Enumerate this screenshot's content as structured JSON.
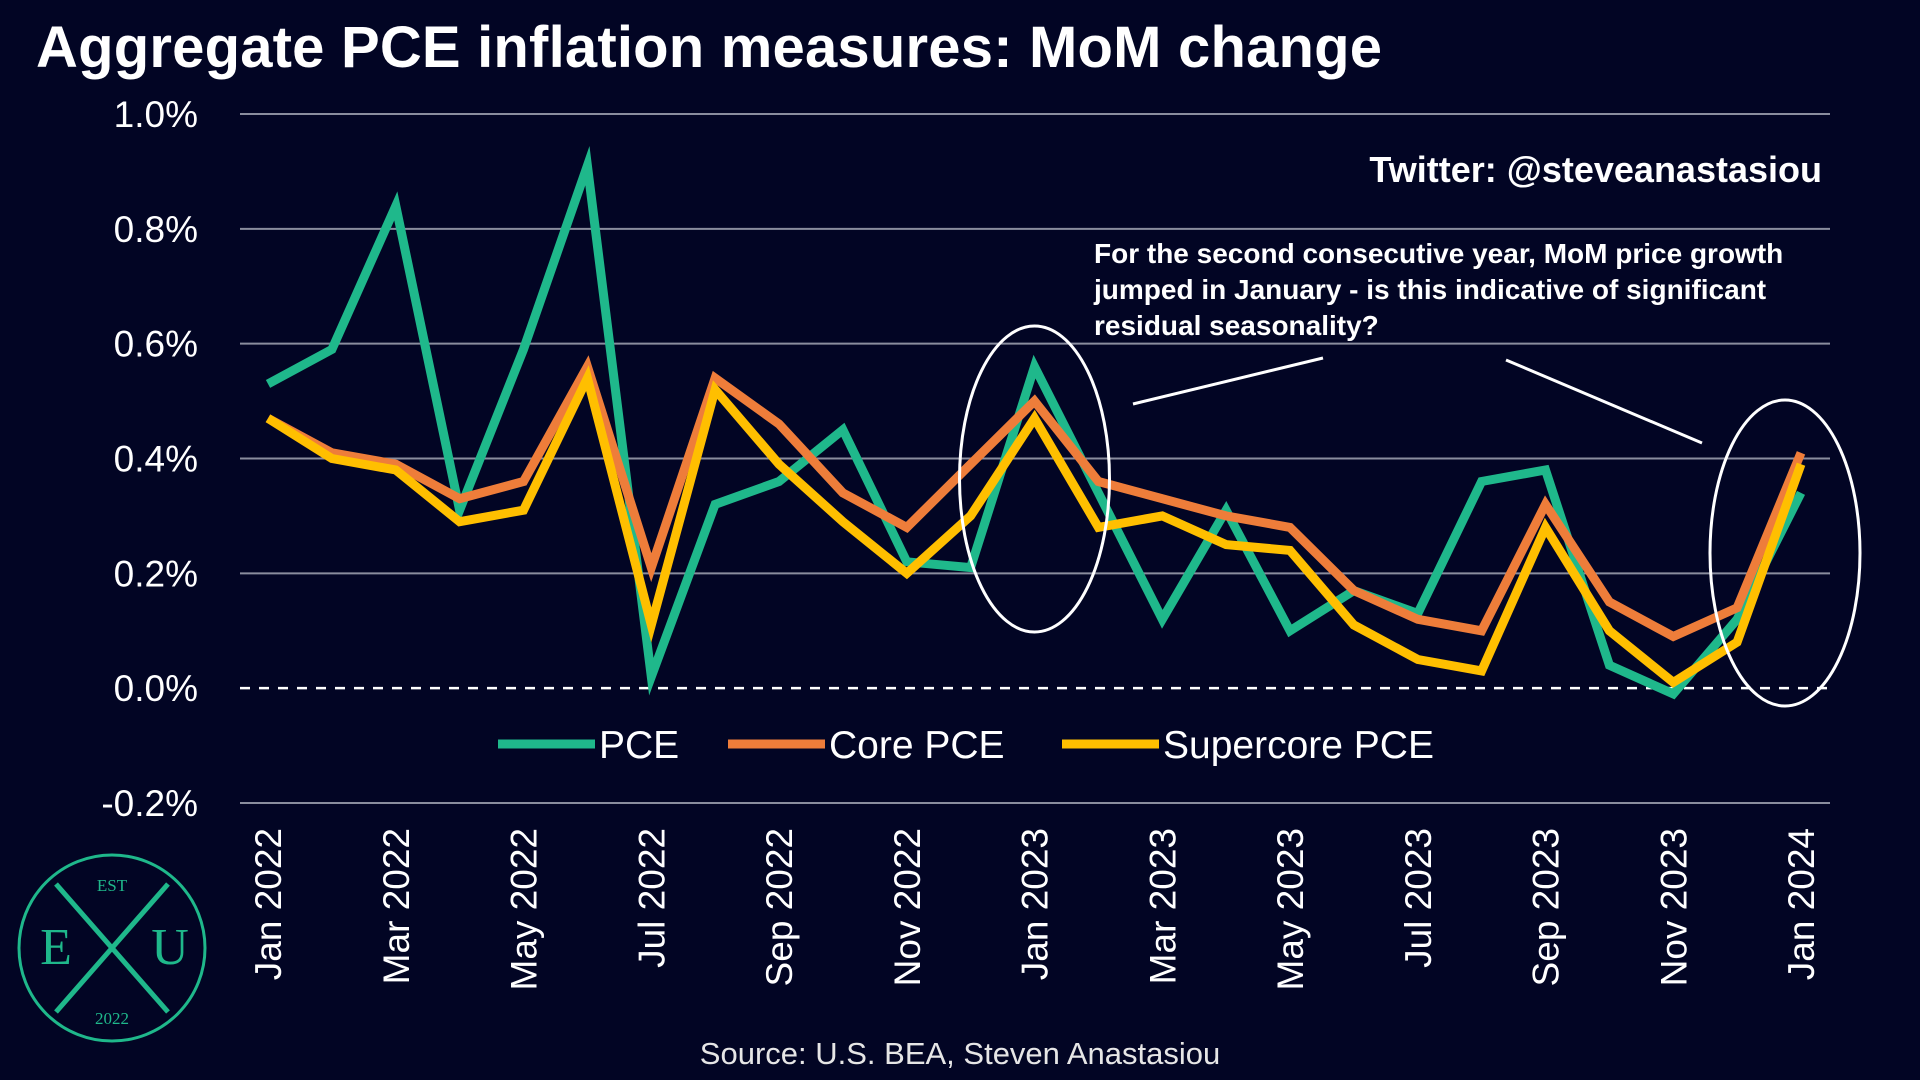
{
  "title": "Aggregate PCE inflation measures: MoM change",
  "source": "Source: U.S. BEA, Steven Anastasiou",
  "twitter": "Twitter: @steveanastasiou",
  "annotation": [
    "For the second consecutive year, MoM price growth",
    "jumped in January - is this indicative of significant",
    "residual seasonality?"
  ],
  "logo": {
    "top": "EST",
    "left": "E",
    "right": "U",
    "bottom": "2022"
  },
  "chart_data": {
    "type": "line",
    "x": [
      "Jan 2022",
      "Feb 2022",
      "Mar 2022",
      "Apr 2022",
      "May 2022",
      "Jun 2022",
      "Jul 2022",
      "Aug 2022",
      "Sep 2022",
      "Oct 2022",
      "Nov 2022",
      "Dec 2022",
      "Jan 2023",
      "Feb 2023",
      "Mar 2023",
      "Apr 2023",
      "May 2023",
      "Jun 2023",
      "Jul 2023",
      "Aug 2023",
      "Sep 2023",
      "Oct 2023",
      "Nov 2023",
      "Dec 2023",
      "Jan 2024"
    ],
    "x_tick_labels": [
      "Jan 2022",
      "Mar 2022",
      "May 2022",
      "Jul 2022",
      "Sep 2022",
      "Nov 2022",
      "Jan 2023",
      "Mar 2023",
      "May 2023",
      "Jul 2023",
      "Sep 2023",
      "Nov 2023",
      "Jan 2024"
    ],
    "y_ticks": [
      "-0.2%",
      "0.0%",
      "0.2%",
      "0.4%",
      "0.6%",
      "0.8%",
      "1.0%"
    ],
    "ylim": [
      -0.2,
      1.0
    ],
    "legend_position": "bottom-center",
    "series": [
      {
        "name": "PCE",
        "color": "#1fb88b",
        "values": [
          0.53,
          0.59,
          0.84,
          0.31,
          0.59,
          0.91,
          0.02,
          0.32,
          0.36,
          0.45,
          0.22,
          0.21,
          0.56,
          0.34,
          0.12,
          0.31,
          0.1,
          0.17,
          0.13,
          0.36,
          0.38,
          0.04,
          -0.01,
          0.12,
          0.34
        ]
      },
      {
        "name": "Core PCE",
        "color": "#ee7d3a",
        "values": [
          0.47,
          0.41,
          0.39,
          0.33,
          0.36,
          0.56,
          0.21,
          0.54,
          0.46,
          0.34,
          0.28,
          0.39,
          0.5,
          0.36,
          0.33,
          0.3,
          0.28,
          0.17,
          0.12,
          0.1,
          0.32,
          0.15,
          0.09,
          0.14,
          0.41
        ]
      },
      {
        "name": "Supercore PCE",
        "color": "#ffbf00",
        "values": [
          0.47,
          0.4,
          0.38,
          0.29,
          0.31,
          0.54,
          0.11,
          0.52,
          0.39,
          0.29,
          0.2,
          0.3,
          0.47,
          0.28,
          0.3,
          0.25,
          0.24,
          0.11,
          0.05,
          0.03,
          0.28,
          0.1,
          0.01,
          0.08,
          0.39
        ]
      }
    ],
    "highlighted_months": [
      "Jan 2023",
      "Jan 2024"
    ]
  }
}
